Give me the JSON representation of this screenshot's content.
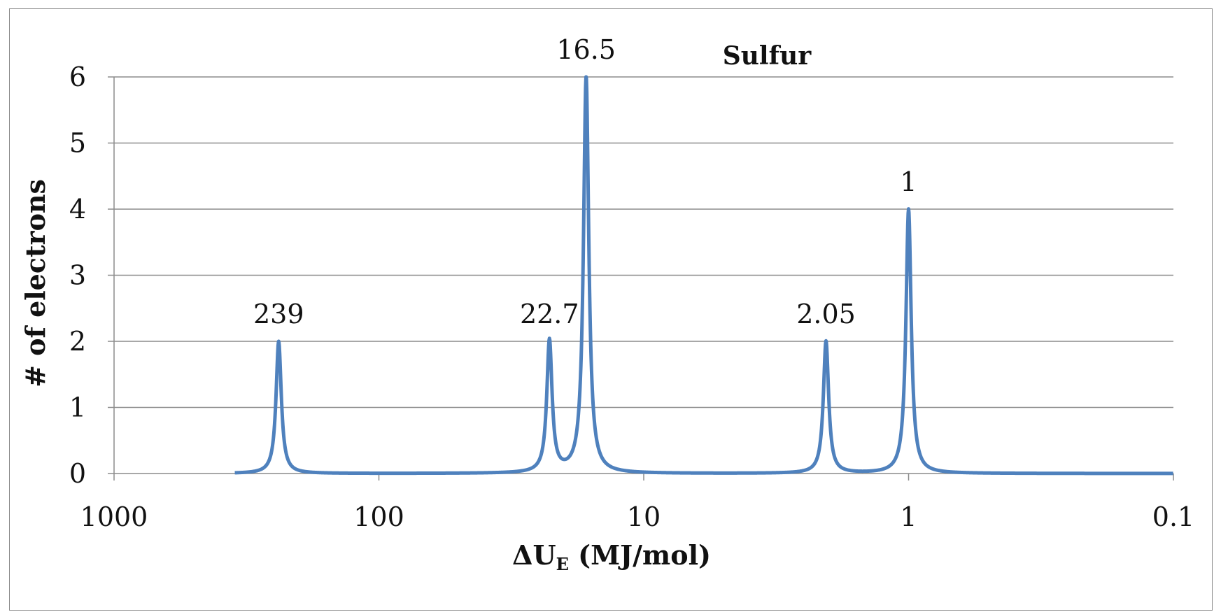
{
  "chart_data": {
    "type": "line",
    "title": "Sulfur",
    "xlabel": {
      "main": "ΔU",
      "subscript": "E",
      "unit": " (MJ/mol)"
    },
    "ylabel": "# of electrons",
    "x_scale": "log",
    "x_reversed": true,
    "xlim": [
      1000,
      0.1
    ],
    "ylim": [
      0,
      6
    ],
    "x_ticks": [
      "1000",
      "100",
      "10",
      "1",
      "0.1"
    ],
    "x_tick_values": [
      1000,
      100,
      10,
      1,
      0.1
    ],
    "y_ticks": [
      "0",
      "1",
      "2",
      "3",
      "4",
      "5",
      "6"
    ],
    "y_tick_values": [
      0,
      1,
      2,
      3,
      4,
      5,
      6
    ],
    "grid": "horizontal",
    "legend": "none",
    "series_color": "#4f81bd",
    "peaks": [
      {
        "x": 239,
        "y": 2,
        "label": "239"
      },
      {
        "x": 22.7,
        "y": 2,
        "label": "22.7"
      },
      {
        "x": 16.5,
        "y": 6,
        "label": "16.5"
      },
      {
        "x": 2.05,
        "y": 2,
        "label": "2.05"
      },
      {
        "x": 1,
        "y": 4,
        "label": "1"
      }
    ]
  }
}
